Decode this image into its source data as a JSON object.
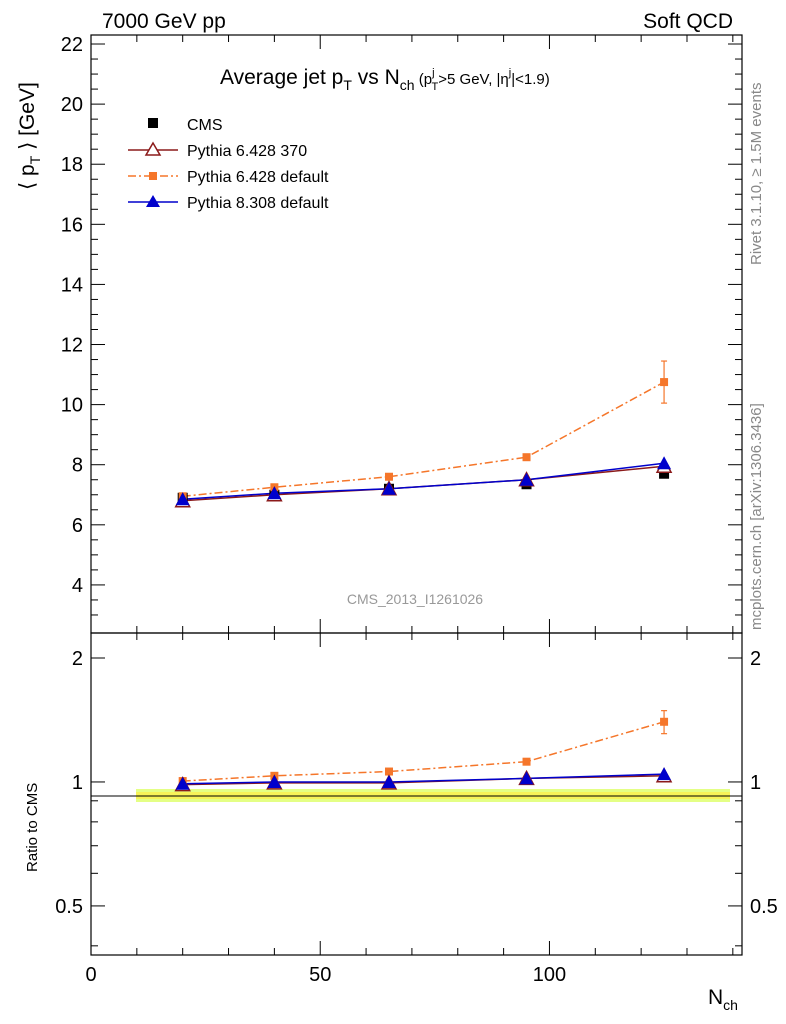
{
  "header": {
    "left": "7000 GeV pp",
    "right": "Soft QCD"
  },
  "side_labels": {
    "rivet": "Rivet 3.1.10, ≥ 1.5M events",
    "mcplots": "mcplots.cern.ch [arXiv:1306.3436]"
  },
  "watermark": "CMS_2013_I1261026",
  "title": {
    "main": "Average jet p",
    "main_sub": "T",
    "vs": " vs N",
    "vs_sub": "ch",
    "cut1": " (p",
    "cut1_sup": "j",
    "cut1_sub": "T",
    "cut1_rest": ">5 GeV, |η",
    "cut2_sup": "j",
    "cut2_rest": "|<1.9)"
  },
  "y_axis_label": {
    "a": "⟨ p",
    "sub": "T",
    "b": " ⟩ [GeV]"
  },
  "ratio_axis_label": "Ratio to CMS",
  "x_axis_label": {
    "main": "N",
    "sub": "ch"
  },
  "colors": {
    "cms": "#000000",
    "py6_370": "#8b1a1a",
    "py6_default": "#f5762a",
    "py8_default": "#0000cc",
    "band_outer": "#ddff66",
    "band_inner": "#ffee44"
  },
  "chart_data": {
    "type": "scatter",
    "x_ticks": [
      "0",
      "50",
      "100"
    ],
    "y_ticks": [
      "4",
      "6",
      "8",
      "10",
      "12",
      "14",
      "16",
      "18",
      "20",
      "22"
    ],
    "ratio_ticks": [
      "0.5",
      "1",
      "2"
    ],
    "xlim": [
      0,
      142
    ],
    "ylim": [
      2.4,
      22.3
    ],
    "ratio_ylim": [
      0.38,
      2.3
    ],
    "ratio_log": true,
    "x": [
      20,
      40,
      65,
      95,
      125
    ],
    "series": [
      {
        "name": "CMS",
        "marker": "square",
        "values": [
          6.9,
          7.0,
          7.2,
          7.35,
          7.7
        ],
        "errors": [
          0.05,
          0.05,
          0.05,
          0.05,
          0.1
        ],
        "ratio": [
          1.0,
          1.0,
          1.0,
          1.0,
          1.0
        ]
      },
      {
        "name": "Pythia 6.428 370",
        "marker": "triangle-open",
        "values": [
          6.8,
          7.0,
          7.2,
          7.5,
          7.95
        ],
        "errors": [
          0,
          0,
          0,
          0,
          0
        ],
        "ratio": [
          0.985,
          0.995,
          0.995,
          1.02,
          1.035
        ]
      },
      {
        "name": "Pythia 6.428 default",
        "marker": "square-small",
        "values": [
          6.95,
          7.25,
          7.6,
          8.25,
          10.75
        ],
        "errors": [
          0.05,
          0.05,
          0.05,
          0.08,
          0.7
        ],
        "ratio": [
          1.005,
          1.035,
          1.06,
          1.12,
          1.4
        ],
        "ratio_errors": [
          0,
          0,
          0,
          0.01,
          0.09
        ]
      },
      {
        "name": "Pythia 8.308 default",
        "marker": "triangle",
        "values": [
          6.85,
          7.05,
          7.2,
          7.5,
          8.05
        ],
        "errors": [
          0,
          0,
          0,
          0,
          0
        ],
        "ratio": [
          0.99,
          1.0,
          1.0,
          1.02,
          1.045
        ]
      }
    ]
  }
}
